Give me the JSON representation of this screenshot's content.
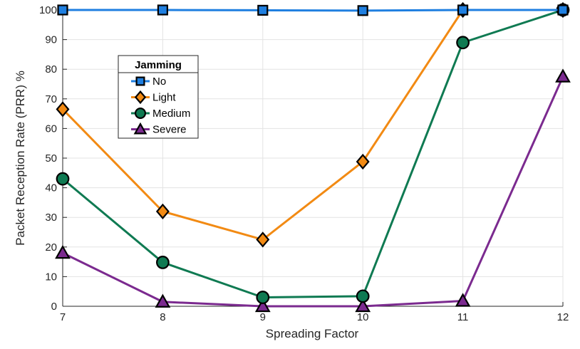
{
  "chart_data": {
    "type": "line",
    "xlabel": "Spreading Factor",
    "ylabel": "Packet Reception Rate (PRR) %",
    "x": [
      7,
      8,
      9,
      10,
      11,
      12
    ],
    "xlim": [
      7,
      12
    ],
    "ylim": [
      0,
      100
    ],
    "yticks": [
      0,
      10,
      20,
      30,
      40,
      50,
      60,
      70,
      80,
      90,
      100
    ],
    "grid": true,
    "legend": {
      "title": "Jamming",
      "placement": "upper-left-inside"
    },
    "series": [
      {
        "name": "No",
        "marker": "square",
        "color": "#1f7fe0",
        "values": [
          100,
          100,
          99.9,
          99.8,
          100,
          100
        ]
      },
      {
        "name": "Light",
        "marker": "diamond",
        "color": "#f28a13",
        "values": [
          66.5,
          32,
          22.5,
          48.8,
          100,
          100
        ]
      },
      {
        "name": "Medium",
        "marker": "circle",
        "color": "#0f7a52",
        "values": [
          43,
          14.8,
          3,
          3.4,
          89,
          100
        ]
      },
      {
        "name": "Severe",
        "marker": "triangle",
        "color": "#7b2a8f",
        "values": [
          18,
          1.5,
          0,
          0,
          1.8,
          77.5
        ]
      }
    ]
  }
}
